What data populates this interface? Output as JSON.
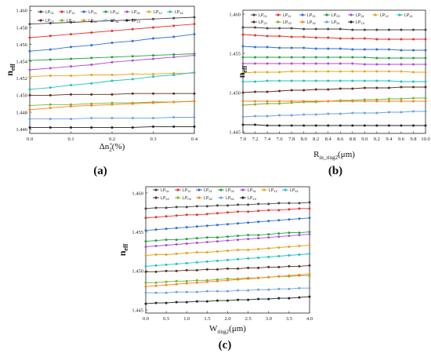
{
  "colors": {
    "LP01": "#444444",
    "LP11": "#e8312f",
    "LP21": "#2f6fd6",
    "LP02": "#23a047",
    "LP31": "#b24ad8",
    "LP12": "#e6a51c",
    "LP41": "#1ec2c4",
    "LP22": "#5a2f1c",
    "LP03": "#76b52e",
    "LP32": "#ff7f1a",
    "LP51": "#6fa0e6",
    "LP13": "#222222"
  },
  "chart_data": [
    {
      "type": "line",
      "caption": "(a)",
      "xlabel": "Δn",
      "xlabel_sub": "2",
      "xlabel_sup": "+",
      "xlabel_tail": "(%)",
      "ylabel": "n",
      "ylabel_sub": "eff",
      "xlim": [
        0,
        0.4
      ],
      "ylim": [
        1.4455,
        1.4605
      ],
      "xticks": [
        "0.0",
        "0.1",
        "0.2",
        "0.3",
        "0.4"
      ],
      "yticks": [
        "1.446",
        "1.448",
        "1.450",
        "1.452",
        "1.454",
        "1.456",
        "1.458",
        "1.460"
      ],
      "ytick_values": [
        1.446,
        1.448,
        1.45,
        1.452,
        1.454,
        1.456,
        1.458,
        1.46
      ],
      "x": [
        0,
        0.05,
        0.1,
        0.15,
        0.2,
        0.25,
        0.3,
        0.35,
        0.4
      ],
      "legend_rows": [
        [
          "LP01",
          "LP11",
          "LP21",
          "LP02",
          "LP31",
          "LP12",
          "LP41"
        ],
        [
          "LP22",
          "LP03",
          "LP32",
          "LP51",
          "LP13"
        ]
      ],
      "series": [
        {
          "name": "LP01",
          "y": [
            1.4584,
            1.4585,
            1.4586,
            1.4587,
            1.4588,
            1.4589,
            1.459,
            1.4591,
            1.4592
          ]
        },
        {
          "name": "LP11",
          "y": [
            1.4568,
            1.457,
            1.4572,
            1.4574,
            1.4576,
            1.4578,
            1.458,
            1.4582,
            1.4584
          ]
        },
        {
          "name": "LP21",
          "y": [
            1.4552,
            1.4554,
            1.4557,
            1.4559,
            1.4562,
            1.4564,
            1.4567,
            1.4569,
            1.4572
          ]
        },
        {
          "name": "LP02",
          "y": [
            1.4541,
            1.4542,
            1.4543,
            1.4544,
            1.4545,
            1.4546,
            1.4547,
            1.4548,
            1.4549
          ]
        },
        {
          "name": "LP31",
          "y": [
            1.453,
            1.4532,
            1.4534,
            1.4536,
            1.4539,
            1.4541,
            1.4543,
            1.4545,
            1.4547
          ]
        },
        {
          "name": "LP12",
          "y": [
            1.4522,
            1.4523,
            1.4523,
            1.4524,
            1.4524,
            1.4525,
            1.4525,
            1.4526,
            1.4526
          ]
        },
        {
          "name": "LP41",
          "y": [
            1.4507,
            1.4509,
            1.4512,
            1.4514,
            1.4517,
            1.4519,
            1.4522,
            1.4524,
            1.4527
          ]
        },
        {
          "name": "LP22",
          "y": [
            1.45,
            1.45,
            1.4501,
            1.4501,
            1.4501,
            1.4502,
            1.4502,
            1.4502,
            1.4502
          ]
        },
        {
          "name": "LP03",
          "y": [
            1.4488,
            1.4489,
            1.4489,
            1.449,
            1.4491,
            1.4491,
            1.4492,
            1.4492,
            1.4493
          ]
        },
        {
          "name": "LP32",
          "y": [
            1.4483,
            1.4485,
            1.4487,
            1.4488,
            1.4489,
            1.449,
            1.4491,
            1.4492,
            1.4493
          ]
        },
        {
          "name": "LP51",
          "y": [
            1.4472,
            1.4472,
            1.4472,
            1.4473,
            1.4473,
            1.4473,
            1.4473,
            1.4474,
            1.4474
          ]
        },
        {
          "name": "LP13",
          "y": [
            1.4462,
            1.4462,
            1.4462,
            1.4462,
            1.4462,
            1.4462,
            1.4463,
            1.4463,
            1.4463
          ]
        }
      ]
    },
    {
      "type": "line",
      "caption": "(b)",
      "xlabel": "R",
      "xlabel_sub": "in_ring2",
      "xlabel_tail": "(μm)",
      "ylabel": "n",
      "ylabel_sub": "eff",
      "xlim": [
        7.0,
        10.0
      ],
      "ylim": [
        1.4448,
        1.4605
      ],
      "xticks": [
        "7.0",
        "7.2",
        "7.4",
        "7.6",
        "7.8",
        "8.0",
        "8.2",
        "8.4",
        "8.6",
        "8.8",
        "9.0",
        "9.2",
        "9.4",
        "9.6",
        "9.8",
        "10.0"
      ],
      "yticks": [
        "1.445",
        "1.450",
        "1.455",
        "1.460"
      ],
      "ytick_values": [
        1.445,
        1.45,
        1.455,
        1.46
      ],
      "x": [
        7.0,
        7.2,
        7.4,
        7.6,
        7.8,
        8.0,
        8.2,
        8.4,
        8.6,
        8.8,
        9.0,
        9.2,
        9.4,
        9.6,
        9.8,
        10.0
      ],
      "legend_rows": [
        [
          "LP01",
          "LP11",
          "LP21",
          "LP02",
          "LP31",
          "LP12",
          "LP41"
        ],
        [
          "LP22",
          "LP03",
          "LP32",
          "LP51",
          "LP13"
        ]
      ],
      "series": [
        {
          "name": "LP01",
          "y": [
            1.4583,
            1.4583,
            1.4582,
            1.4582,
            1.4582,
            1.4581,
            1.4581,
            1.4581,
            1.4581,
            1.458,
            1.458,
            1.458,
            1.458,
            1.458,
            1.458,
            1.458
          ]
        },
        {
          "name": "LP11",
          "y": [
            1.4574,
            1.4573,
            1.4572,
            1.4572,
            1.4571,
            1.4571,
            1.457,
            1.457,
            1.4569,
            1.4569,
            1.4569,
            1.4568,
            1.4568,
            1.4568,
            1.4568,
            1.4568
          ]
        },
        {
          "name": "LP21",
          "y": [
            1.4559,
            1.4558,
            1.4558,
            1.4557,
            1.4557,
            1.4557,
            1.4556,
            1.4556,
            1.4556,
            1.4555,
            1.4555,
            1.4555,
            1.4555,
            1.4554,
            1.4554,
            1.4554
          ]
        },
        {
          "name": "LP02",
          "y": [
            1.4545,
            1.4545,
            1.4545,
            1.4545,
            1.4545,
            1.4545,
            1.4545,
            1.4545,
            1.4545,
            1.4545,
            1.4545,
            1.4544,
            1.4544,
            1.4544,
            1.4544,
            1.4544
          ]
        },
        {
          "name": "LP31",
          "y": [
            1.4537,
            1.4537,
            1.4537,
            1.4537,
            1.4537,
            1.4537,
            1.4537,
            1.4537,
            1.4537,
            1.4537,
            1.4536,
            1.4536,
            1.4536,
            1.4536,
            1.4536,
            1.4536
          ]
        },
        {
          "name": "LP12",
          "y": [
            1.4525,
            1.4526,
            1.4526,
            1.4526,
            1.4527,
            1.4527,
            1.4527,
            1.4527,
            1.4527,
            1.4527,
            1.4527,
            1.4527,
            1.4527,
            1.4527,
            1.4526,
            1.4526
          ]
        },
        {
          "name": "LP41",
          "y": [
            1.4514,
            1.4514,
            1.4515,
            1.4515,
            1.4515,
            1.4515,
            1.4515,
            1.4515,
            1.4515,
            1.4515,
            1.4515,
            1.4515,
            1.4515,
            1.4514,
            1.4514,
            1.4514
          ]
        },
        {
          "name": "LP22",
          "y": [
            1.45,
            1.4501,
            1.4501,
            1.4502,
            1.4503,
            1.4503,
            1.4504,
            1.4504,
            1.4505,
            1.4505,
            1.4506,
            1.4506,
            1.4506,
            1.4507,
            1.4507,
            1.4507
          ]
        },
        {
          "name": "LP03",
          "y": [
            1.4484,
            1.4485,
            1.4486,
            1.4486,
            1.4487,
            1.4488,
            1.4488,
            1.4489,
            1.449,
            1.449,
            1.4491,
            1.4491,
            1.4492,
            1.4492,
            1.4493,
            1.4493
          ]
        },
        {
          "name": "LP32",
          "y": [
            1.4489,
            1.4489,
            1.4489,
            1.4489,
            1.4489,
            1.4489,
            1.4489,
            1.4489,
            1.4489,
            1.4489,
            1.4489,
            1.4489,
            1.4489,
            1.4489,
            1.4489,
            1.4489
          ]
        },
        {
          "name": "LP51",
          "y": [
            1.4469,
            1.447,
            1.447,
            1.4471,
            1.4471,
            1.4472,
            1.4472,
            1.4473,
            1.4473,
            1.4474,
            1.4474,
            1.4474,
            1.4475,
            1.4475,
            1.4476,
            1.4476
          ]
        },
        {
          "name": "LP13",
          "y": [
            1.4459,
            1.4459,
            1.4458,
            1.4458,
            1.4458,
            1.4458,
            1.4458,
            1.4458,
            1.4458,
            1.4458,
            1.4458,
            1.4458,
            1.4458,
            1.4458,
            1.4458,
            1.4458
          ]
        }
      ]
    },
    {
      "type": "line",
      "caption": "(c)",
      "xlabel": "W",
      "xlabel_sub": "ring2",
      "xlabel_tail": "(μm)",
      "ylabel": "n",
      "ylabel_sub": "eff",
      "xlim": [
        0,
        4.0
      ],
      "ylim": [
        1.4446,
        1.4608
      ],
      "xticks": [
        "0.0",
        "0.5",
        "1.0",
        "1.5",
        "2.0",
        "2.5",
        "3.0",
        "3.5",
        "4.0"
      ],
      "yticks": [
        "1.445",
        "1.450",
        "1.455",
        "1.460"
      ],
      "ytick_values": [
        1.445,
        1.45,
        1.455,
        1.46
      ],
      "x": [
        0,
        0.25,
        0.5,
        0.75,
        1.0,
        1.25,
        1.5,
        1.75,
        2.0,
        2.25,
        2.5,
        2.75,
        3.0,
        3.25,
        3.5,
        3.75,
        4.0
      ],
      "legend_rows": [
        [
          "LP01",
          "LP11",
          "LP21",
          "LP02",
          "LP31",
          "LP12",
          "LP41"
        ],
        [
          "LP22",
          "LP03",
          "LP32",
          "LP51",
          "LP13"
        ]
      ],
      "series": [
        {
          "name": "LP01",
          "y": [
            1.458,
            1.4581,
            1.4581,
            1.4582,
            1.4582,
            1.4583,
            1.4583,
            1.4584,
            1.4584,
            1.4585,
            1.4585,
            1.4586,
            1.4586,
            1.4587,
            1.4587,
            1.4587,
            1.4588
          ]
        },
        {
          "name": "LP11",
          "y": [
            1.4568,
            1.4569,
            1.457,
            1.4571,
            1.4572,
            1.4572,
            1.4573,
            1.4574,
            1.4575,
            1.4576,
            1.4576,
            1.4577,
            1.4578,
            1.4578,
            1.4579,
            1.458,
            1.458
          ]
        },
        {
          "name": "LP21",
          "y": [
            1.4552,
            1.4553,
            1.4554,
            1.4555,
            1.4556,
            1.4557,
            1.4558,
            1.4559,
            1.456,
            1.4561,
            1.4562,
            1.4563,
            1.4564,
            1.4565,
            1.4566,
            1.4567,
            1.4568
          ]
        },
        {
          "name": "LP02",
          "y": [
            1.4538,
            1.4539,
            1.454,
            1.454,
            1.4541,
            1.4542,
            1.4543,
            1.4543,
            1.4544,
            1.4545,
            1.4546,
            1.4546,
            1.4547,
            1.4548,
            1.4549,
            1.4549,
            1.455
          ]
        },
        {
          "name": "LP31",
          "y": [
            1.4531,
            1.4532,
            1.4533,
            1.4534,
            1.4535,
            1.4536,
            1.4537,
            1.4538,
            1.4539,
            1.454,
            1.4541,
            1.4542,
            1.4543,
            1.4544,
            1.4545,
            1.4546,
            1.4547
          ]
        },
        {
          "name": "LP12",
          "y": [
            1.452,
            1.4521,
            1.4521,
            1.4522,
            1.4523,
            1.4524,
            1.4524,
            1.4525,
            1.4526,
            1.4527,
            1.4527,
            1.4528,
            1.4529,
            1.453,
            1.4531,
            1.4532,
            1.4533
          ]
        },
        {
          "name": "LP41",
          "y": [
            1.4506,
            1.4507,
            1.4508,
            1.4509,
            1.451,
            1.4511,
            1.4512,
            1.4513,
            1.4514,
            1.4515,
            1.4516,
            1.4517,
            1.4518,
            1.4519,
            1.452,
            1.4521,
            1.4522
          ]
        },
        {
          "name": "LP22",
          "y": [
            1.4499,
            1.4499,
            1.45,
            1.45,
            1.4501,
            1.4501,
            1.4502,
            1.4502,
            1.4503,
            1.4503,
            1.4504,
            1.4504,
            1.4505,
            1.4505,
            1.4506,
            1.4506,
            1.4507
          ]
        },
        {
          "name": "LP03",
          "y": [
            1.4485,
            1.4485,
            1.4486,
            1.4487,
            1.4487,
            1.4488,
            1.4488,
            1.4489,
            1.449,
            1.449,
            1.4491,
            1.4491,
            1.4492,
            1.4493,
            1.4493,
            1.4494,
            1.4494
          ]
        },
        {
          "name": "LP32",
          "y": [
            1.448,
            1.4481,
            1.4482,
            1.4483,
            1.4484,
            1.4485,
            1.4486,
            1.4487,
            1.4488,
            1.4489,
            1.449,
            1.4491,
            1.4492,
            1.4493,
            1.4494,
            1.4495,
            1.4496
          ]
        },
        {
          "name": "LP51",
          "y": [
            1.4472,
            1.4472,
            1.4472,
            1.4473,
            1.4473,
            1.4473,
            1.4474,
            1.4474,
            1.4474,
            1.4475,
            1.4475,
            1.4476,
            1.4476,
            1.4477,
            1.4477,
            1.4478,
            1.4478
          ]
        },
        {
          "name": "LP13",
          "y": [
            1.4458,
            1.4459,
            1.4459,
            1.446,
            1.446,
            1.4461,
            1.4461,
            1.4462,
            1.4462,
            1.4463,
            1.4463,
            1.4464,
            1.4464,
            1.4465,
            1.4465,
            1.4466,
            1.4467
          ]
        }
      ]
    }
  ]
}
